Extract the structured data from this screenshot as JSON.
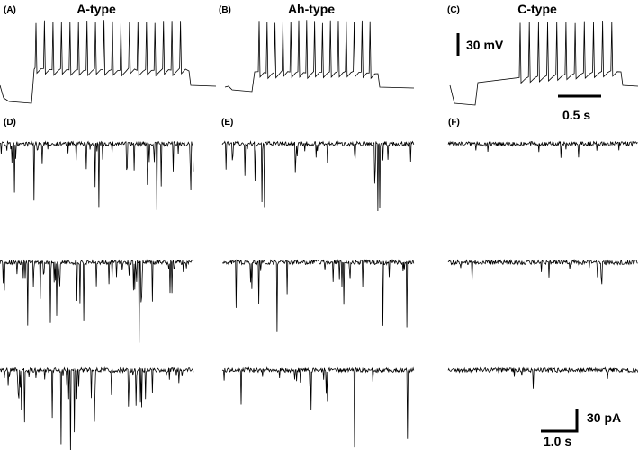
{
  "panels": [
    {
      "label": "(A)",
      "title": "A-type"
    },
    {
      "label": "(B)",
      "title": "Ah-type"
    },
    {
      "label": "(C)",
      "title": "C-type"
    },
    {
      "label": "(D)"
    },
    {
      "label": "(E)"
    },
    {
      "label": "(F)"
    }
  ],
  "scale_bars": {
    "voltage": "30 mV",
    "time_top": "0.5 s",
    "current": "30 pA",
    "time_bottom": "1.0 s"
  }
}
